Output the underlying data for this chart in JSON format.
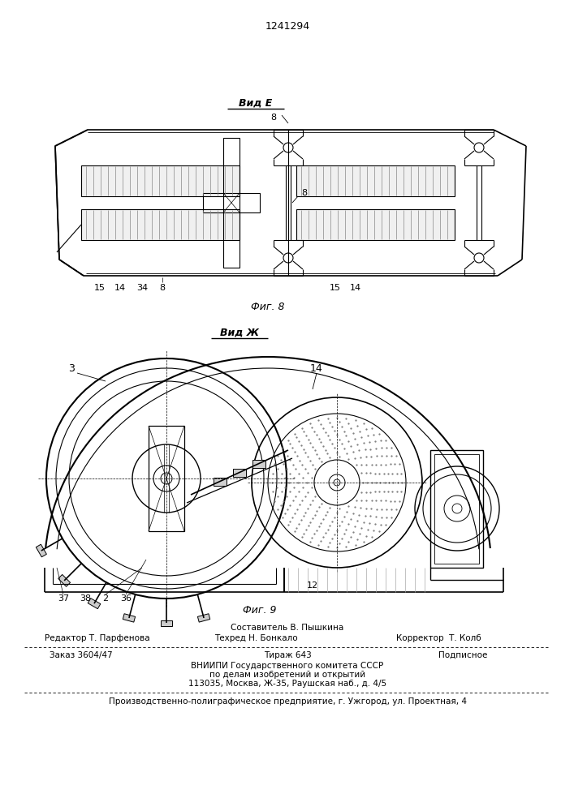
{
  "patent_number": "1241294",
  "fig8_label": "Вид Е",
  "fig8_caption": "Фиг. 8",
  "fig9_label": "Вид Ж",
  "fig9_caption": "Фиг. 9",
  "footer_sestavitel": "Составитель В. Пышкина",
  "footer_redaktor": "Редактор Т. Парфенова",
  "footer_tekhred": "Техред Н. Бонкало",
  "footer_korrektor": "Корректор  Т. Колб",
  "footer_zakaz": "Заказ 3604/47",
  "footer_tirazh": "Тираж 643",
  "footer_podpisnoe": "Подписное",
  "footer_vniiipi1": "ВНИИПИ Государственного комитета СССР",
  "footer_vniiipi2": "по делам изобретений и открытий",
  "footer_vniiipi3": "113035, Москва, Ж-35, Раушская наб., д. 4/5",
  "footer_bottom": "Производственно-полиграфическое предприятие, г. Ужгород, ул. Проектная, 4",
  "bg_color": "#ffffff",
  "lc": "#000000"
}
